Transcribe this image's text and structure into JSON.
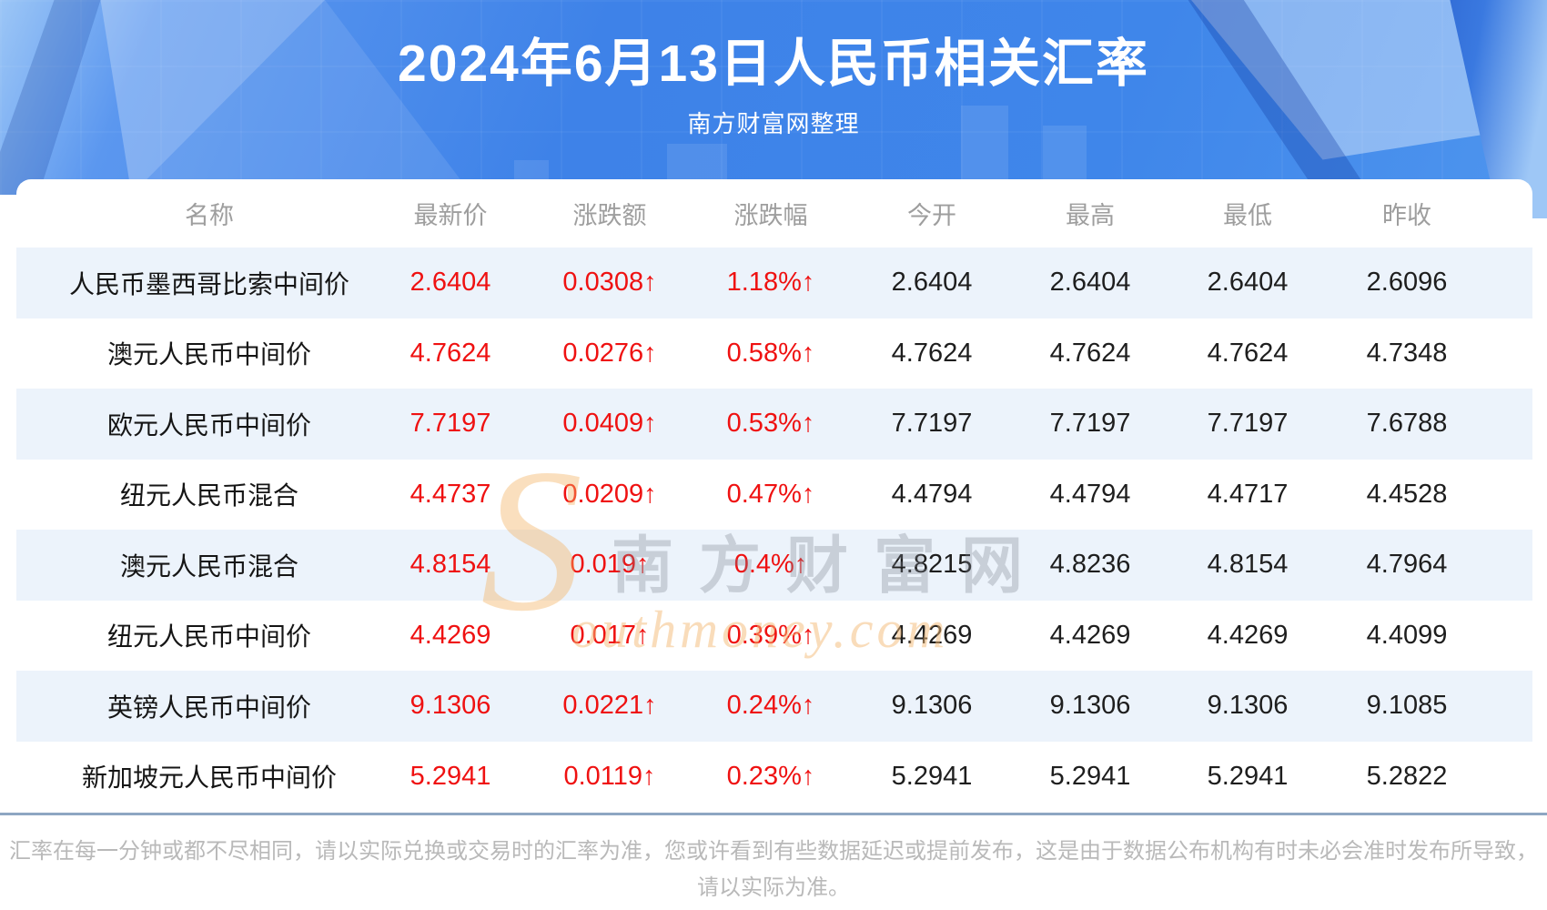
{
  "header": {
    "title": "2024年6月13日人民币相关汇率",
    "subtitle": "南方财富网整理"
  },
  "chart_data": {
    "type": "table",
    "title": "2024年6月13日人民币相关汇率",
    "columns": [
      "名称",
      "最新价",
      "涨跌额",
      "涨跌幅",
      "今开",
      "最高",
      "最低",
      "昨收"
    ],
    "rows": [
      {
        "name": "人民币墨西哥比索中间价",
        "latest": "2.6404",
        "change": "0.0308↑",
        "change_pct": "1.18%↑",
        "open": "2.6404",
        "high": "2.6404",
        "low": "2.6404",
        "prev_close": "2.6096"
      },
      {
        "name": "澳元人民币中间价",
        "latest": "4.7624",
        "change": "0.0276↑",
        "change_pct": "0.58%↑",
        "open": "4.7624",
        "high": "4.7624",
        "low": "4.7624",
        "prev_close": "4.7348"
      },
      {
        "name": "欧元人民币中间价",
        "latest": "7.7197",
        "change": "0.0409↑",
        "change_pct": "0.53%↑",
        "open": "7.7197",
        "high": "7.7197",
        "low": "7.7197",
        "prev_close": "7.6788"
      },
      {
        "name": "纽元人民币混合",
        "latest": "4.4737",
        "change": "0.0209↑",
        "change_pct": "0.47%↑",
        "open": "4.4794",
        "high": "4.4794",
        "low": "4.4717",
        "prev_close": "4.4528"
      },
      {
        "name": "澳元人民币混合",
        "latest": "4.8154",
        "change": "0.019↑",
        "change_pct": "0.4%↑",
        "open": "4.8215",
        "high": "4.8236",
        "low": "4.8154",
        "prev_close": "4.7964"
      },
      {
        "name": "纽元人民币中间价",
        "latest": "4.4269",
        "change": "0.017↑",
        "change_pct": "0.39%↑",
        "open": "4.4269",
        "high": "4.4269",
        "low": "4.4269",
        "prev_close": "4.4099"
      },
      {
        "name": "英镑人民币中间价",
        "latest": "9.1306",
        "change": "0.0221↑",
        "change_pct": "0.24%↑",
        "open": "9.1306",
        "high": "9.1306",
        "low": "9.1306",
        "prev_close": "9.1085"
      },
      {
        "name": "新加坡元人民币中间价",
        "latest": "5.2941",
        "change": "0.0119↑",
        "change_pct": "0.23%↑",
        "open": "5.2941",
        "high": "5.2941",
        "low": "5.2941",
        "prev_close": "5.2822"
      }
    ]
  },
  "watermark": {
    "s": "S",
    "cn": "南方财富网",
    "en": "outhmoney.com"
  },
  "footer": {
    "line1": "汇率在每一分钟或都不尽相同，请以实际兑换或交易时的汇率为准，您或许看到有些数据延迟或提前发布，这是由于数据公布机构有时未必会准时发布所导致，",
    "line2": "请以实际为准。"
  },
  "colors": {
    "up_red": "#ef1111",
    "row_alt_blue": "#ecf3fb",
    "banner_blue": "#3f86ea",
    "divider_blue_gray": "#8ea6c2",
    "watermark_orange": "#f4b264"
  }
}
